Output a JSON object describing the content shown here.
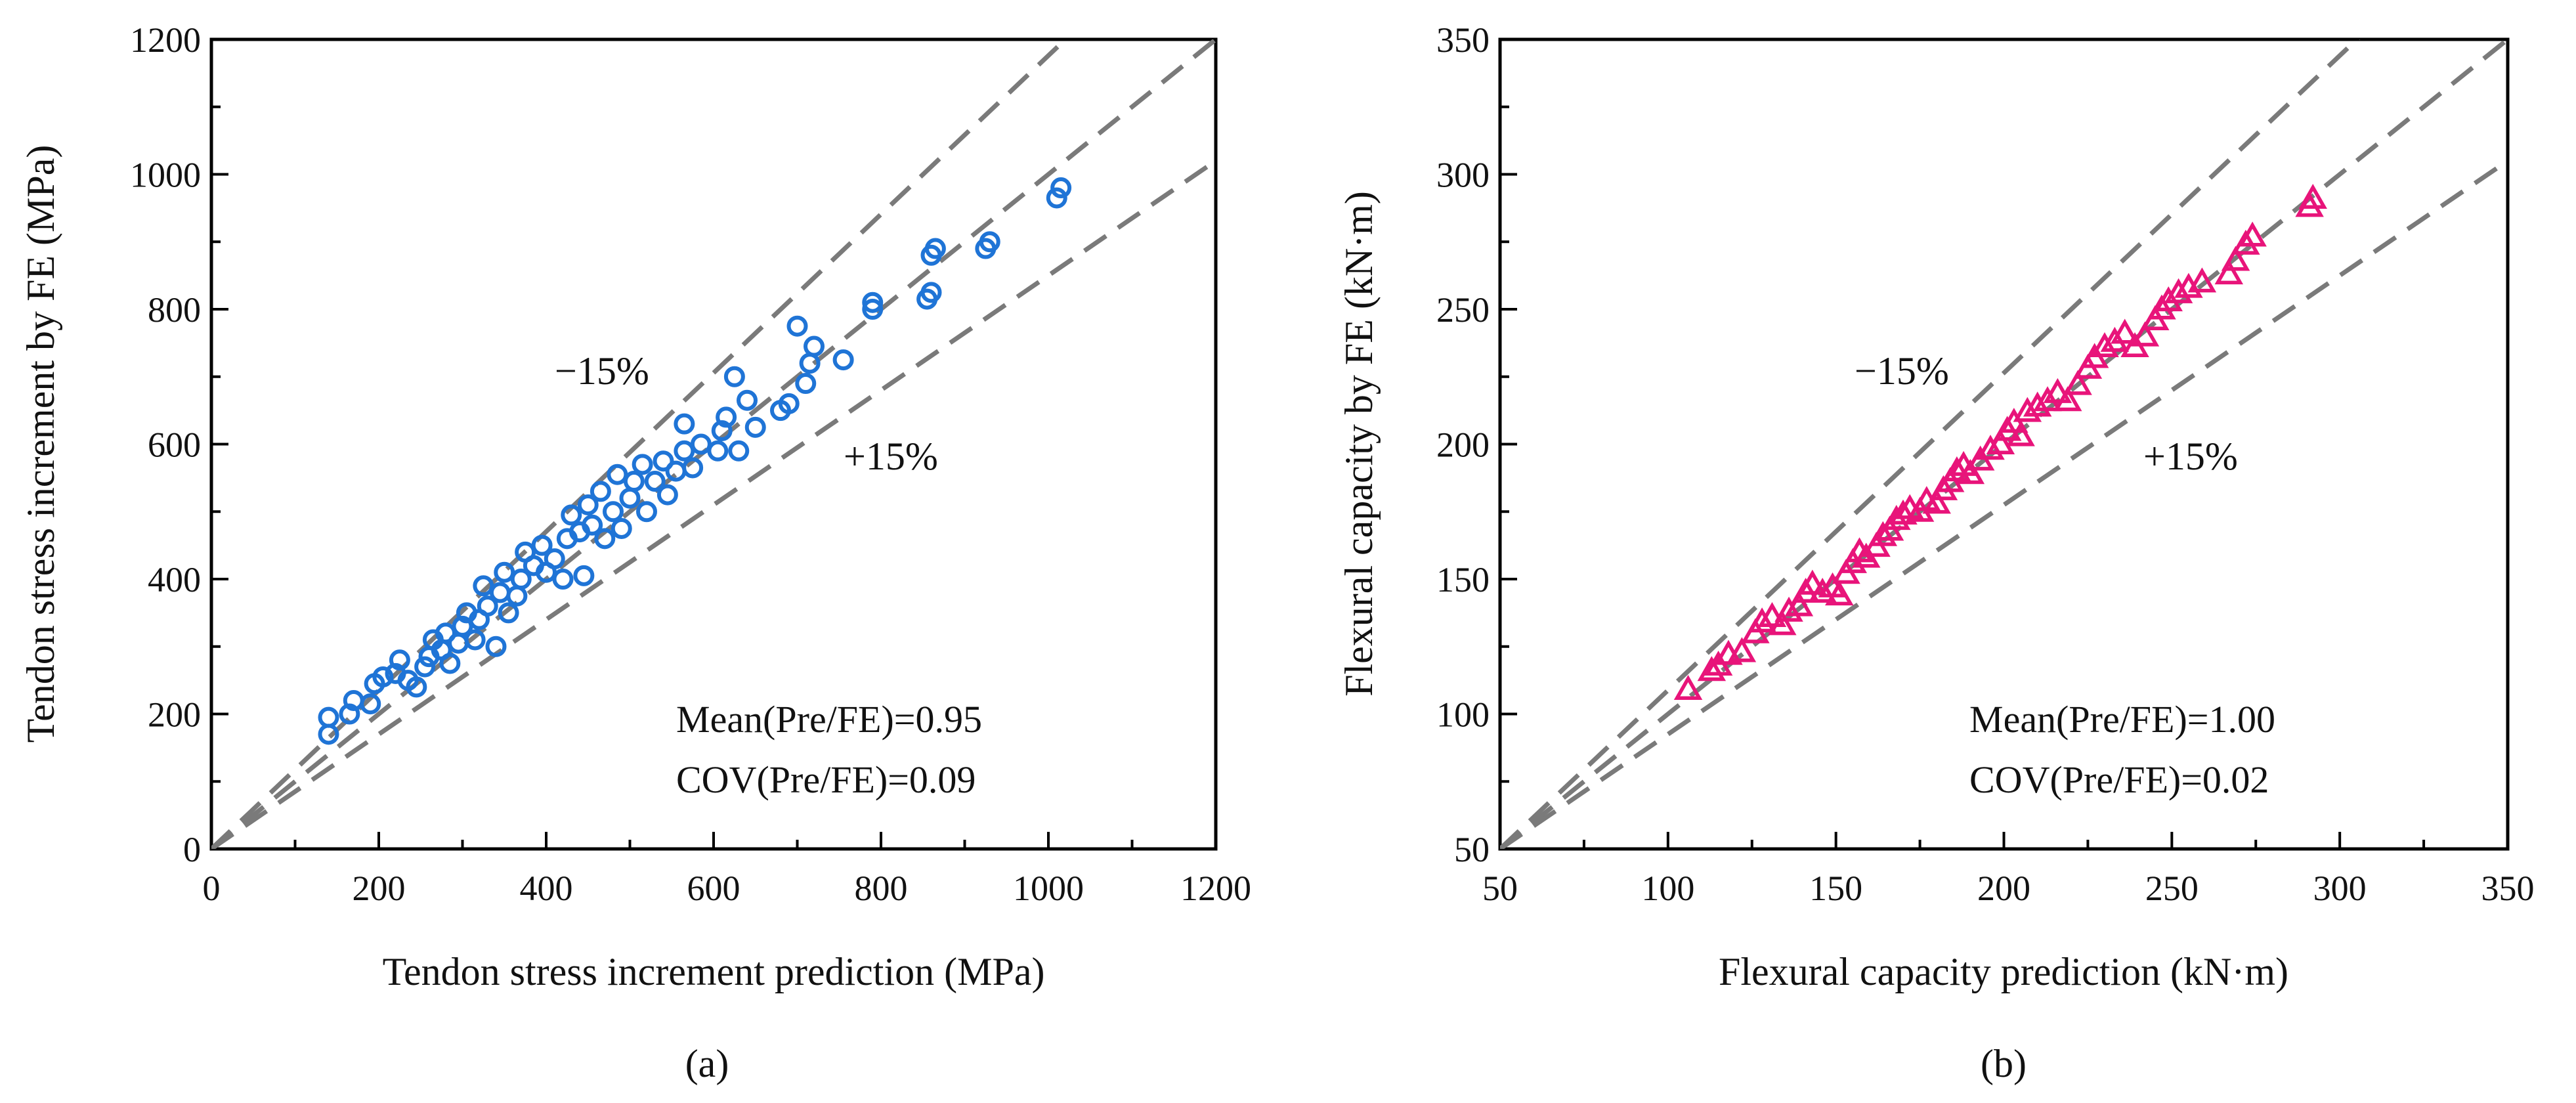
{
  "figure": {
    "caption_a": "(a)",
    "caption_b": "(b)"
  },
  "chart_data": [
    {
      "type": "scatter",
      "panel": "(a)",
      "xlabel": "Tendon stress increment prediction (MPa)",
      "ylabel": "Tendon stress increment by FE (MPa)",
      "xlim": [
        0,
        1200
      ],
      "ylim": [
        0,
        1200
      ],
      "xticks": [
        0,
        200,
        400,
        600,
        800,
        1000,
        1200
      ],
      "yticks": [
        0,
        200,
        400,
        600,
        800,
        1000,
        1200
      ],
      "minor_step": 100,
      "marker": "circle",
      "color": "#1f74d6",
      "reference_lines": [
        {
          "label": "",
          "slope": 1.0
        },
        {
          "label": "−15%",
          "slope": 1.176
        },
        {
          "label": "+15%",
          "slope": 0.85
        }
      ],
      "ref_label_minus": "−15%",
      "ref_label_plus": "+15%",
      "annotations": [
        "Mean(Pre/FE)=0.95",
        "COV(Pre/FE)=0.09"
      ],
      "points": [
        [
          140,
          170
        ],
        [
          140,
          195
        ],
        [
          165,
          200
        ],
        [
          170,
          220
        ],
        [
          190,
          215
        ],
        [
          195,
          245
        ],
        [
          205,
          255
        ],
        [
          220,
          260
        ],
        [
          225,
          280
        ],
        [
          235,
          250
        ],
        [
          245,
          240
        ],
        [
          255,
          270
        ],
        [
          260,
          285
        ],
        [
          265,
          310
        ],
        [
          275,
          295
        ],
        [
          280,
          320
        ],
        [
          285,
          275
        ],
        [
          295,
          305
        ],
        [
          300,
          330
        ],
        [
          305,
          350
        ],
        [
          315,
          310
        ],
        [
          320,
          340
        ],
        [
          325,
          390
        ],
        [
          330,
          360
        ],
        [
          340,
          300
        ],
        [
          345,
          380
        ],
        [
          350,
          410
        ],
        [
          355,
          350
        ],
        [
          365,
          375
        ],
        [
          370,
          400
        ],
        [
          375,
          440
        ],
        [
          385,
          420
        ],
        [
          395,
          450
        ],
        [
          400,
          410
        ],
        [
          410,
          430
        ],
        [
          420,
          400
        ],
        [
          425,
          460
        ],
        [
          430,
          495
        ],
        [
          440,
          470
        ],
        [
          445,
          405
        ],
        [
          450,
          510
        ],
        [
          455,
          480
        ],
        [
          465,
          530
        ],
        [
          470,
          460
        ],
        [
          480,
          500
        ],
        [
          485,
          555
        ],
        [
          490,
          475
        ],
        [
          500,
          520
        ],
        [
          505,
          545
        ],
        [
          515,
          570
        ],
        [
          520,
          500
        ],
        [
          530,
          545
        ],
        [
          540,
          575
        ],
        [
          545,
          525
        ],
        [
          555,
          560
        ],
        [
          565,
          590
        ],
        [
          565,
          630
        ],
        [
          575,
          565
        ],
        [
          585,
          600
        ],
        [
          605,
          590
        ],
        [
          610,
          620
        ],
        [
          615,
          640
        ],
        [
          625,
          700
        ],
        [
          630,
          590
        ],
        [
          640,
          665
        ],
        [
          650,
          625
        ],
        [
          680,
          650
        ],
        [
          690,
          660
        ],
        [
          700,
          775
        ],
        [
          710,
          690
        ],
        [
          715,
          720
        ],
        [
          720,
          745
        ],
        [
          755,
          725
        ],
        [
          790,
          800
        ],
        [
          790,
          810
        ],
        [
          855,
          815
        ],
        [
          860,
          825
        ],
        [
          860,
          880
        ],
        [
          865,
          890
        ],
        [
          925,
          890
        ],
        [
          930,
          900
        ],
        [
          1010,
          965
        ],
        [
          1015,
          980
        ]
      ]
    },
    {
      "type": "scatter",
      "panel": "(b)",
      "xlabel": "Flexural capacity prediction (kN·m)",
      "ylabel": "Flexural capacity by FE (kN·m)",
      "xlim": [
        50,
        350
      ],
      "ylim": [
        50,
        350
      ],
      "xticks": [
        50,
        100,
        150,
        200,
        250,
        300,
        350
      ],
      "yticks": [
        50,
        100,
        150,
        200,
        250,
        300,
        350
      ],
      "minor_step": 25,
      "marker": "triangle",
      "color": "#e8147a",
      "reference_lines": [
        {
          "label": "",
          "slope": 1.0
        },
        {
          "label": "−15%",
          "slope": 1.176
        },
        {
          "label": "+15%",
          "slope": 0.85
        }
      ],
      "ref_label_minus": "−15%",
      "ref_label_plus": "+15%",
      "annotations": [
        "Mean(Pre/FE)=1.00",
        "COV(Pre/FE)=0.02"
      ],
      "points": [
        [
          106,
          109
        ],
        [
          113,
          116
        ],
        [
          115,
          118
        ],
        [
          118,
          122
        ],
        [
          122,
          123
        ],
        [
          126,
          130
        ],
        [
          128,
          134
        ],
        [
          131,
          136
        ],
        [
          134,
          133
        ],
        [
          136,
          138
        ],
        [
          139,
          140
        ],
        [
          141,
          145
        ],
        [
          143,
          148
        ],
        [
          146,
          145
        ],
        [
          149,
          147
        ],
        [
          151,
          144
        ],
        [
          153,
          152
        ],
        [
          155,
          156
        ],
        [
          157,
          160
        ],
        [
          159,
          158
        ],
        [
          162,
          162
        ],
        [
          164,
          166
        ],
        [
          166,
          168
        ],
        [
          168,
          172
        ],
        [
          170,
          174
        ],
        [
          172,
          176
        ],
        [
          175,
          175
        ],
        [
          177,
          179
        ],
        [
          180,
          178
        ],
        [
          182,
          183
        ],
        [
          184,
          186
        ],
        [
          186,
          190
        ],
        [
          188,
          192
        ],
        [
          190,
          189
        ],
        [
          193,
          194
        ],
        [
          196,
          198
        ],
        [
          199,
          200
        ],
        [
          201,
          205
        ],
        [
          203,
          208
        ],
        [
          205,
          203
        ],
        [
          207,
          212
        ],
        [
          210,
          214
        ],
        [
          213,
          216
        ],
        [
          216,
          219
        ],
        [
          219,
          216
        ],
        [
          222,
          222
        ],
        [
          225,
          228
        ],
        [
          227,
          232
        ],
        [
          230,
          236
        ],
        [
          233,
          238
        ],
        [
          236,
          241
        ],
        [
          239,
          236
        ],
        [
          242,
          240
        ],
        [
          245,
          246
        ],
        [
          247,
          250
        ],
        [
          249,
          253
        ],
        [
          252,
          256
        ],
        [
          255,
          258
        ],
        [
          259,
          260
        ],
        [
          267,
          263
        ],
        [
          269,
          268
        ],
        [
          272,
          274
        ],
        [
          274,
          277
        ],
        [
          291,
          288
        ],
        [
          292,
          291
        ]
      ]
    }
  ]
}
